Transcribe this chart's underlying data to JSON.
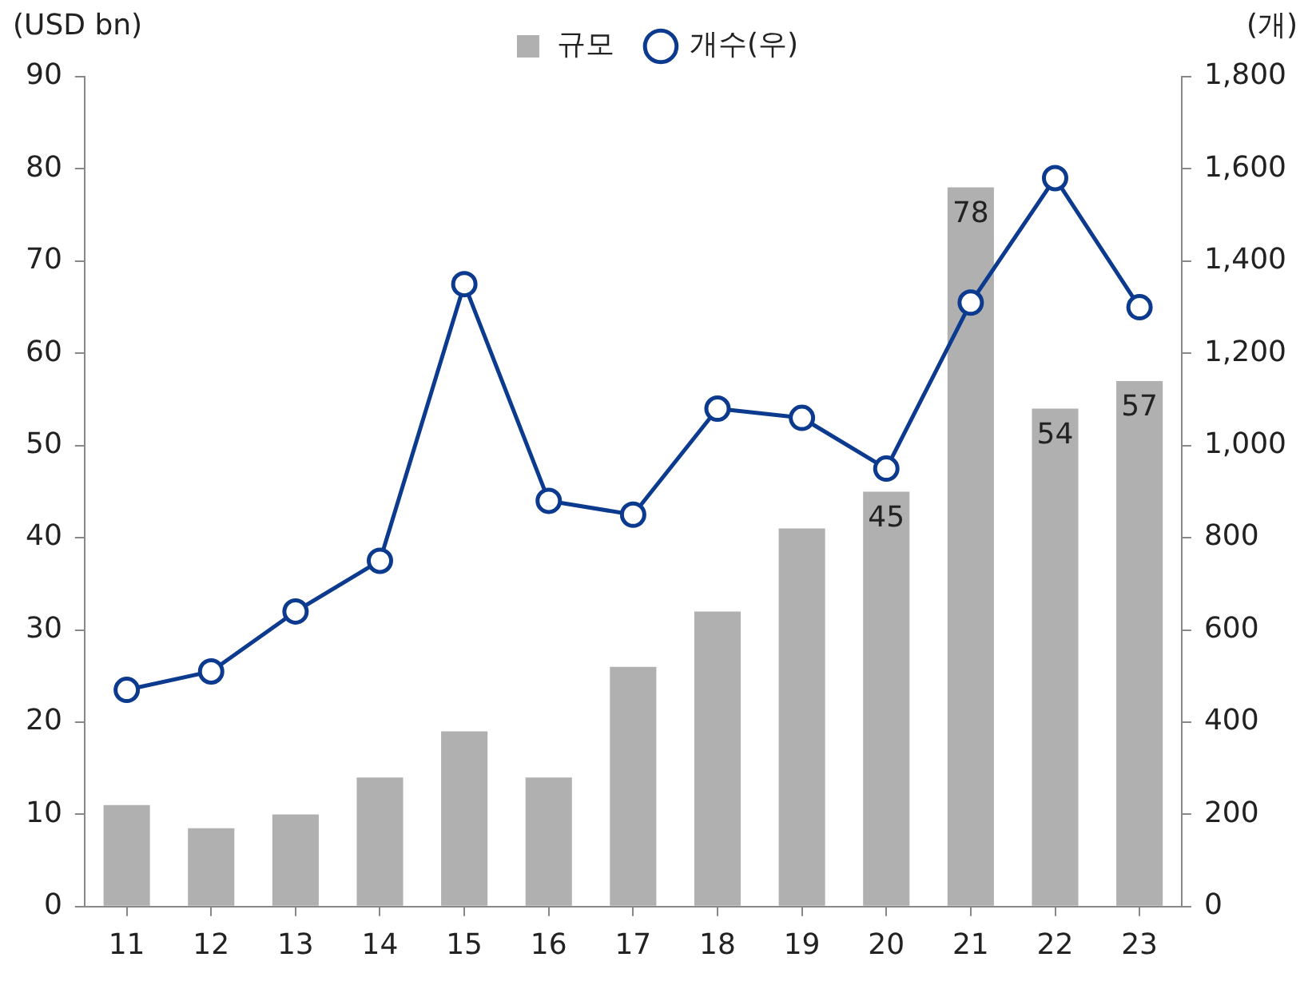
{
  "chart_data": {
    "type": "bar",
    "ylabel": "(USD bn)",
    "y2label": "(개)",
    "categories": [
      "11",
      "12",
      "13",
      "14",
      "15",
      "16",
      "17",
      "18",
      "19",
      "20",
      "21",
      "22",
      "23"
    ],
    "series": [
      {
        "name": "규모",
        "color": "#b0b0b0",
        "values": [
          11,
          8.5,
          10,
          14,
          19,
          14,
          26,
          32,
          41,
          45,
          78,
          54,
          57
        ],
        "value_labels": [
          null,
          null,
          null,
          null,
          null,
          null,
          null,
          null,
          null,
          "45",
          "78",
          "54",
          "57"
        ]
      },
      {
        "name": "개수(우)",
        "type": "line",
        "axis": "y2",
        "color": "#0b3a8f",
        "marker": "circle",
        "values": [
          470,
          510,
          640,
          750,
          1350,
          880,
          850,
          1080,
          1060,
          950,
          1310,
          1580,
          1300
        ]
      }
    ],
    "ylim": [
      0,
      90
    ],
    "yticks": [
      0,
      10,
      20,
      30,
      40,
      50,
      60,
      70,
      80,
      90
    ],
    "y2lim": [
      0,
      1800
    ],
    "y2ticks": [
      0,
      {
        "value": 200,
        "label": "200"
      },
      {
        "value": 400,
        "label": "400"
      },
      {
        "value": 600,
        "label": "600"
      },
      {
        "value": 800,
        "label": "800"
      },
      {
        "value": 1000,
        "label": "1,000"
      },
      {
        "value": 1200,
        "label": "1,200"
      },
      {
        "value": 1400,
        "label": "1,400"
      },
      {
        "value": 1600,
        "label": "1,600"
      },
      {
        "value": 1800,
        "label": "1,800"
      }
    ],
    "legend": "top",
    "grid": false
  }
}
